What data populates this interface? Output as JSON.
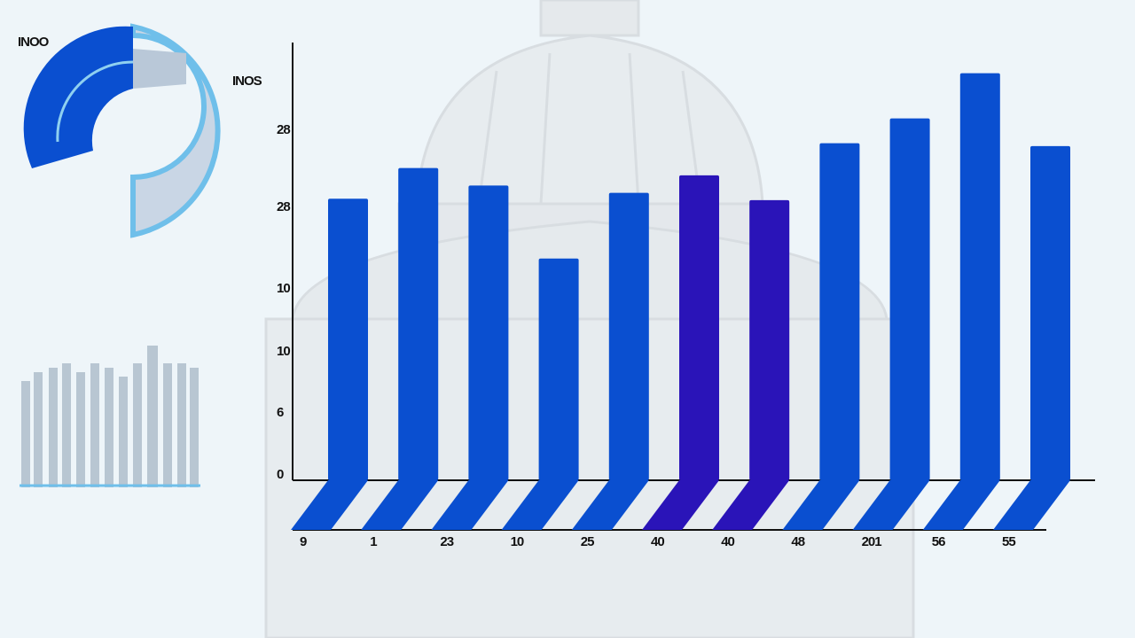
{
  "chart_data": {
    "type": "bar",
    "donut_labels": [
      "INOO",
      "INOS"
    ],
    "y_axis_labels": [
      "28",
      "28",
      "10",
      "10",
      "6",
      "0"
    ],
    "categories": [
      "9",
      "1",
      "23",
      "10",
      "25",
      "40",
      "40",
      "48",
      "201",
      "56",
      "55"
    ],
    "values": [
      19.3,
      21.4,
      20.2,
      15.2,
      19.7,
      20.9,
      19.2,
      23.1,
      24.8,
      27.9,
      22.9
    ],
    "colors": [
      "#0a4fd0",
      "#0a4fd0",
      "#0a4fd0",
      "#0a4fd0",
      "#0a4fd0",
      "#2a14b8",
      "#2a14b8",
      "#0a4fd0",
      "#0a4fd0",
      "#0a4fd0",
      "#0a4fd0"
    ],
    "ylim": [
      0,
      30
    ]
  }
}
